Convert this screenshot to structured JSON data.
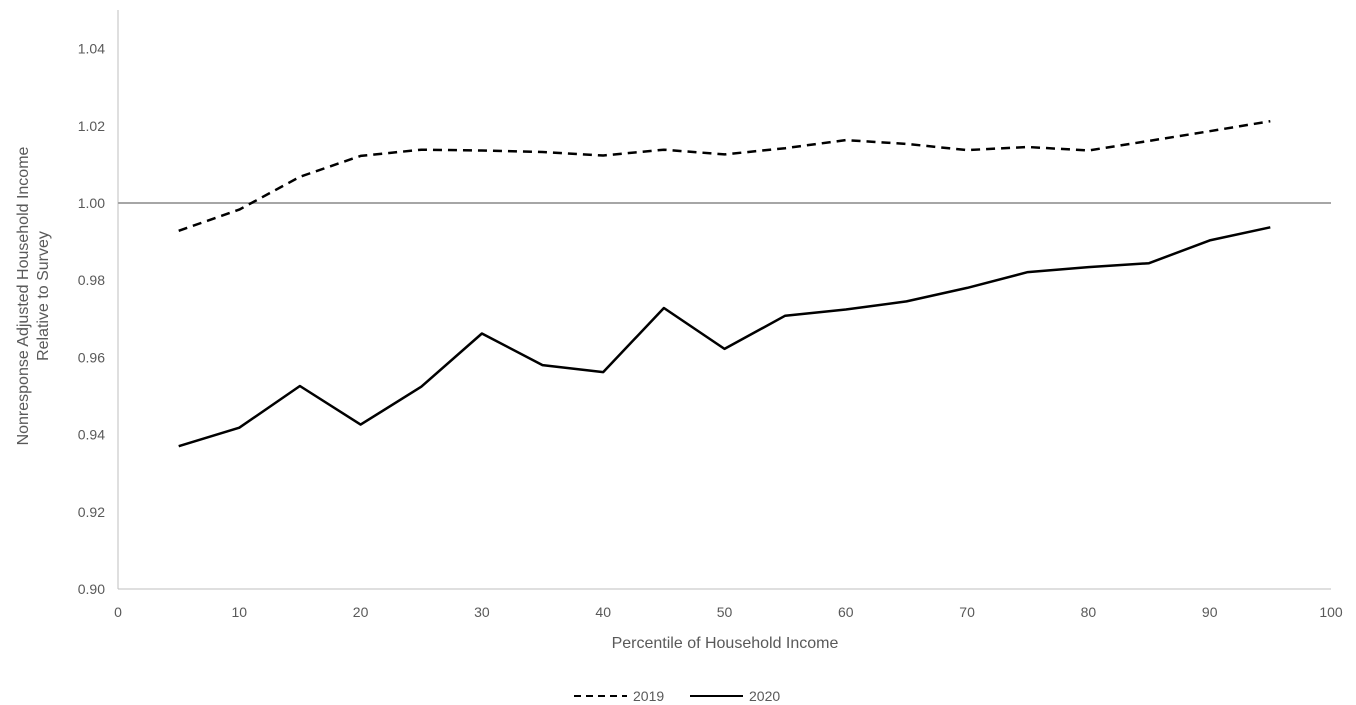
{
  "chart_data": {
    "type": "line",
    "xlabel": "Percentile of Household Income",
    "ylabel_lines": [
      "Nonresponse Adjusted Household Income",
      "Relative to Survey"
    ],
    "xlim": [
      0,
      100
    ],
    "ylim": [
      0.9,
      1.05
    ],
    "xticks": [
      0,
      10,
      20,
      30,
      40,
      50,
      60,
      70,
      80,
      90,
      100
    ],
    "xtick_labels": [
      "0",
      "10",
      "20",
      "30",
      "40",
      "50",
      "60",
      "70",
      "80",
      "90",
      "100"
    ],
    "yticks": [
      0.9,
      0.92,
      0.94,
      0.96,
      0.98,
      1.0,
      1.02,
      1.04
    ],
    "ytick_labels": [
      "0.90",
      "0.92",
      "0.94",
      "0.96",
      "0.98",
      "1.00",
      "1.02",
      "1.04"
    ],
    "reference_line": 1.0,
    "grid": false,
    "legend_position": "bottom-center",
    "x": [
      5,
      10,
      15,
      20,
      25,
      30,
      35,
      40,
      45,
      50,
      55,
      60,
      65,
      70,
      75,
      80,
      85,
      90,
      95
    ],
    "series": [
      {
        "name": "2019",
        "style": "dashed",
        "color": "#000000",
        "values": [
          0.9928,
          0.9983,
          1.0068,
          1.0122,
          1.0138,
          1.0136,
          1.0132,
          1.0123,
          1.0138,
          1.0126,
          1.0142,
          1.0163,
          1.0153,
          1.0137,
          1.0145,
          1.0136,
          1.0161,
          1.0186,
          1.0212
        ]
      },
      {
        "name": "2020",
        "style": "solid",
        "color": "#000000",
        "values": [
          0.937,
          0.9418,
          0.9526,
          0.9426,
          0.9524,
          0.9662,
          0.958,
          0.9562,
          0.9728,
          0.9622,
          0.9708,
          0.9724,
          0.9745,
          0.978,
          0.9821,
          0.9834,
          0.9844,
          0.9903,
          0.9937
        ]
      }
    ],
    "colors": {
      "axis": "#bfbfbf",
      "reference": "#a6a6a6",
      "text": "#595959"
    }
  }
}
